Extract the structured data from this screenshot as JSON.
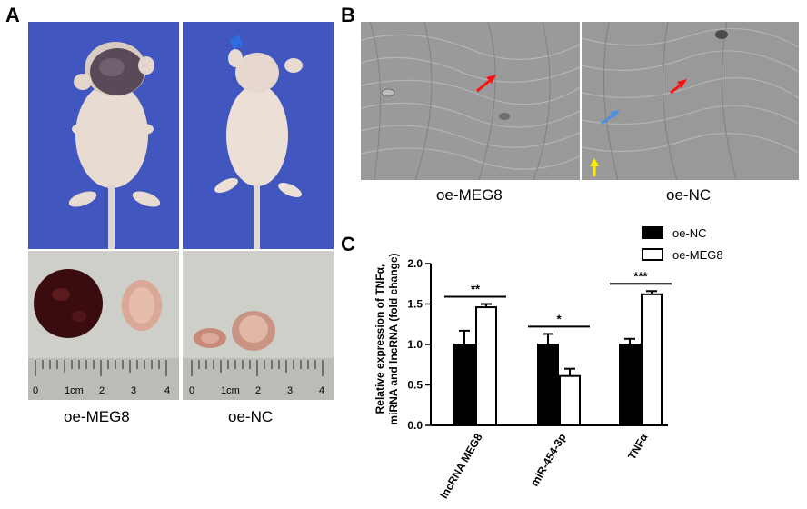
{
  "panels": {
    "a": {
      "letter": "A",
      "left_label": "oe-MEG8",
      "right_label": "oe-NC",
      "ruler_labels": [
        "0",
        "1cm",
        "2",
        "3",
        "4"
      ]
    },
    "b": {
      "letter": "B",
      "left_label": "oe-MEG8",
      "right_label": "oe-NC"
    },
    "c": {
      "letter": "C"
    }
  },
  "colors": {
    "mouse_bg": "#3a4fb8",
    "table_bg": "#cfcfc9",
    "sem_bg": "#9a9a9a",
    "tumor_dark": "#3a0c10",
    "tumor_light": "#d9a896",
    "arrow_red": "#ff1010",
    "arrow_blue": "#4d8fe0",
    "arrow_yellow": "#ffee00"
  },
  "chart_data": {
    "type": "bar",
    "ylabel_lines": [
      "Relative expression of TNFα,",
      "miRNA and lncRNA (fold change)"
    ],
    "categories": [
      "lncRNA MEG8",
      "miR-454-3p",
      "TNFα"
    ],
    "series": [
      {
        "name": "oe-NC",
        "fill": "#000000",
        "values": [
          1.0,
          1.0,
          1.0
        ],
        "errors": [
          0.17,
          0.13,
          0.07
        ]
      },
      {
        "name": "oe-MEG8",
        "fill": "#ffffff",
        "values": [
          1.46,
          0.61,
          1.62
        ],
        "errors": [
          0.04,
          0.09,
          0.04
        ]
      }
    ],
    "significance": [
      "**",
      "*",
      "***"
    ],
    "ylim": [
      0,
      2.0
    ],
    "yticks": [
      "0.0",
      "0.5",
      "1.0",
      "1.5",
      "2.0"
    ],
    "legend_position": "top-right"
  }
}
